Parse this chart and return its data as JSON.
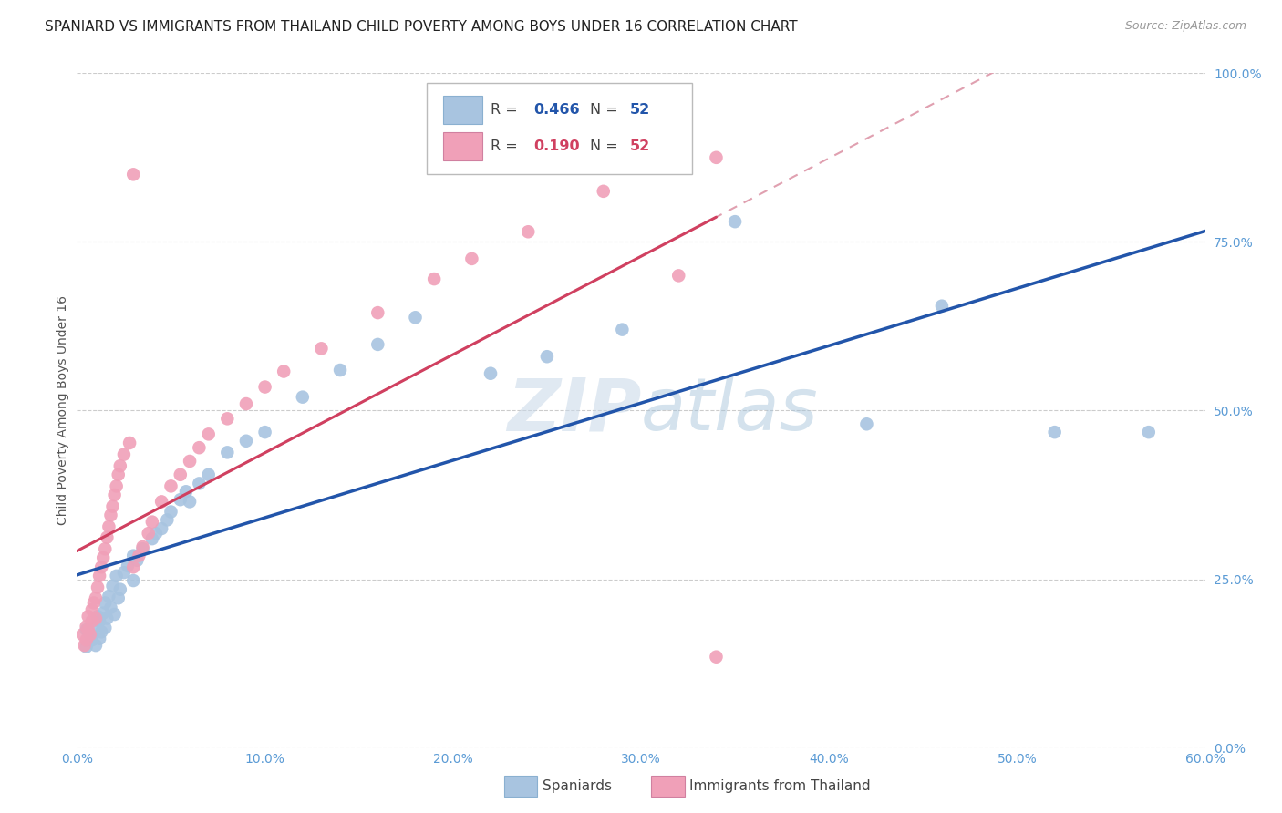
{
  "title": "SPANIARD VS IMMIGRANTS FROM THAILAND CHILD POVERTY AMONG BOYS UNDER 16 CORRELATION CHART",
  "source": "Source: ZipAtlas.com",
  "ylabel": "Child Poverty Among Boys Under 16",
  "xlim": [
    0.0,
    0.6
  ],
  "ylim": [
    0.0,
    1.0
  ],
  "R_blue": 0.466,
  "N_blue": 52,
  "R_pink": 0.19,
  "N_pink": 52,
  "legend_label_blue": "Spaniards",
  "legend_label_pink": "Immigrants from Thailand",
  "blue_color": "#a8c4e0",
  "blue_line_color": "#2255aa",
  "pink_color": "#f0a0b8",
  "pink_line_color": "#d04060",
  "pink_dash_color": "#e0a0b0",
  "background_color": "#ffffff",
  "grid_color": "#cccccc",
  "title_fontsize": 11,
  "axis_label_fontsize": 10,
  "tick_label_color": "#5b9bd5",
  "tick_fontsize": 10,
  "watermark_text": "ZIPatlas",
  "blue_scatter_x": [
    0.005,
    0.005,
    0.007,
    0.008,
    0.01,
    0.01,
    0.011,
    0.012,
    0.012,
    0.013,
    0.014,
    0.015,
    0.015,
    0.016,
    0.017,
    0.018,
    0.019,
    0.02,
    0.021,
    0.022,
    0.023,
    0.025,
    0.027,
    0.03,
    0.03,
    0.032,
    0.035,
    0.04,
    0.042,
    0.045,
    0.048,
    0.05,
    0.055,
    0.058,
    0.06,
    0.065,
    0.07,
    0.08,
    0.09,
    0.1,
    0.12,
    0.14,
    0.16,
    0.18,
    0.22,
    0.25,
    0.29,
    0.35,
    0.42,
    0.46,
    0.52,
    0.57
  ],
  "blue_scatter_y": [
    0.175,
    0.15,
    0.168,
    0.16,
    0.152,
    0.18,
    0.195,
    0.162,
    0.188,
    0.172,
    0.2,
    0.178,
    0.215,
    0.192,
    0.225,
    0.208,
    0.24,
    0.198,
    0.255,
    0.222,
    0.235,
    0.26,
    0.27,
    0.248,
    0.285,
    0.278,
    0.295,
    0.31,
    0.318,
    0.325,
    0.338,
    0.35,
    0.368,
    0.38,
    0.365,
    0.392,
    0.405,
    0.438,
    0.455,
    0.468,
    0.52,
    0.56,
    0.598,
    0.638,
    0.555,
    0.58,
    0.62,
    0.78,
    0.48,
    0.655,
    0.468,
    0.468
  ],
  "pink_scatter_x": [
    0.003,
    0.004,
    0.005,
    0.005,
    0.006,
    0.006,
    0.007,
    0.008,
    0.008,
    0.009,
    0.01,
    0.01,
    0.011,
    0.012,
    0.013,
    0.014,
    0.015,
    0.016,
    0.017,
    0.018,
    0.019,
    0.02,
    0.021,
    0.022,
    0.023,
    0.025,
    0.028,
    0.03,
    0.033,
    0.035,
    0.038,
    0.04,
    0.045,
    0.05,
    0.055,
    0.06,
    0.065,
    0.07,
    0.08,
    0.09,
    0.1,
    0.11,
    0.13,
    0.16,
    0.19,
    0.21,
    0.24,
    0.28,
    0.32,
    0.34,
    0.34,
    0.03
  ],
  "pink_scatter_y": [
    0.168,
    0.152,
    0.18,
    0.16,
    0.175,
    0.195,
    0.168,
    0.188,
    0.205,
    0.215,
    0.192,
    0.222,
    0.238,
    0.255,
    0.268,
    0.282,
    0.295,
    0.312,
    0.328,
    0.345,
    0.358,
    0.375,
    0.388,
    0.405,
    0.418,
    0.435,
    0.452,
    0.268,
    0.285,
    0.298,
    0.318,
    0.335,
    0.365,
    0.388,
    0.405,
    0.425,
    0.445,
    0.465,
    0.488,
    0.51,
    0.535,
    0.558,
    0.592,
    0.645,
    0.695,
    0.725,
    0.765,
    0.825,
    0.7,
    0.875,
    0.135,
    0.85
  ]
}
